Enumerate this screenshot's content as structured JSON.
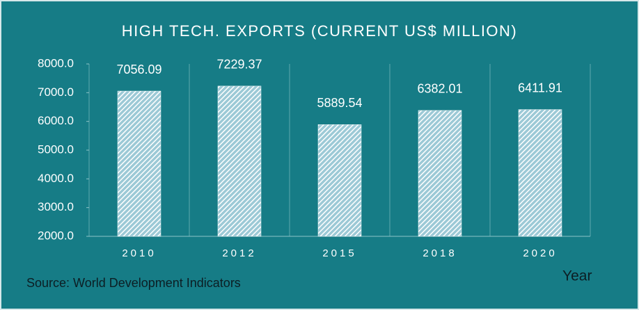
{
  "chart_data": {
    "type": "bar",
    "title": "HIGH TECH. EXPORTS (CURRENT US$ MILLION)",
    "x_label": "Year",
    "source": "Source: World Development Indicators",
    "categories": [
      "2010",
      "2012",
      "2015",
      "2018",
      "2020"
    ],
    "values": [
      7056.09,
      7229.37,
      5889.54,
      6382.01,
      6411.91
    ],
    "color": "#ffffff",
    "ylim": [
      2000,
      8000
    ],
    "yticks": [
      {
        "value": 2000,
        "label": "2000.0"
      },
      {
        "value": 3000,
        "label": "3000.0"
      },
      {
        "value": 4000,
        "label": "4000.0"
      },
      {
        "value": 5000,
        "label": "5000.0"
      },
      {
        "value": 6000,
        "label": "6000.0"
      },
      {
        "value": 7000,
        "label": "7000.0"
      },
      {
        "value": 8000,
        "label": "8000.0"
      }
    ]
  }
}
